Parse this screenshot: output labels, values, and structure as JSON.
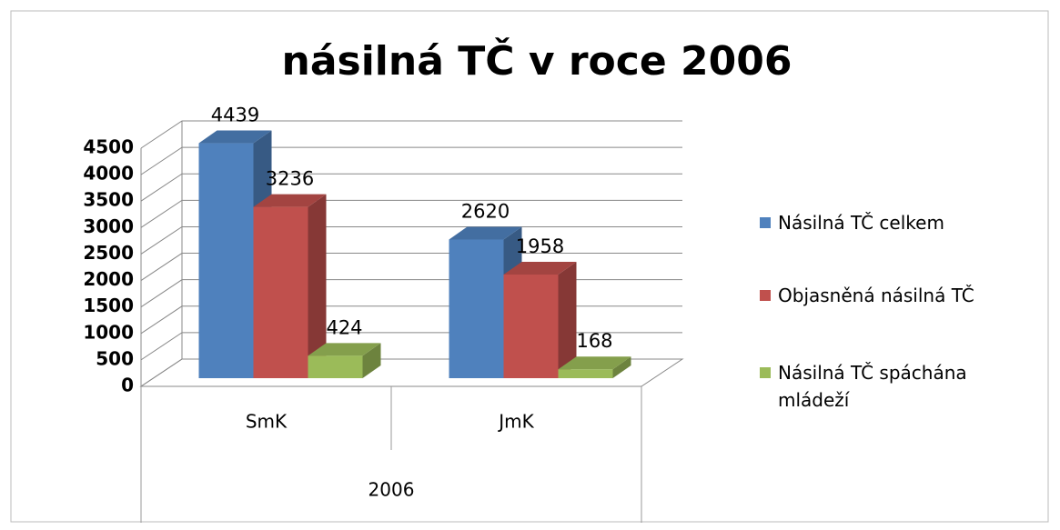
{
  "chart_data": {
    "type": "bar3d",
    "title": "násilná TČ v roce 2006",
    "x_label": "2006",
    "categories": [
      "SmK",
      "JmK"
    ],
    "series": [
      {
        "name": "Násilná TČ celkem",
        "color": "#4f81bd",
        "values": [
          4439,
          2620
        ]
      },
      {
        "name": "Objasněná násilná TČ",
        "color": "#c0504d",
        "values": [
          3236,
          1958
        ]
      },
      {
        "name": "Násilná TČ spáchána mládeží",
        "color": "#9bbb59",
        "values": [
          424,
          168
        ]
      }
    ],
    "ylim": [
      0,
      4500
    ],
    "yticks": [
      0,
      500,
      1000,
      1500,
      2000,
      2500,
      3000,
      3500,
      4000,
      4500
    ],
    "grid": true,
    "legend": "right"
  }
}
